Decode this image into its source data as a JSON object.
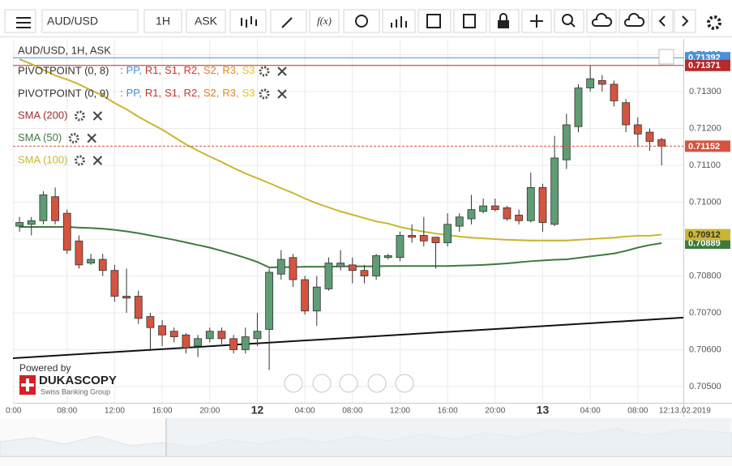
{
  "toolbar": {
    "symbol": "AUD/USD",
    "period": "1H",
    "side": "ASK",
    "function": "f(x)"
  },
  "chart_data": {
    "type": "candlestick",
    "title": "AUD/USD, 1H, ASK",
    "pivots": [
      {
        "name": "PIVOTPOINT (0, 8)",
        "parts": [
          {
            "text": ":",
            "color": "#666666"
          },
          {
            "text": "PP,",
            "color": "#3d8fe0"
          },
          {
            "text": "R1,",
            "color": "#c0392b"
          },
          {
            "text": "S1,",
            "color": "#c0392b"
          },
          {
            "text": "R2,",
            "color": "#d9352e"
          },
          {
            "text": "S2,",
            "color": "#e67e22"
          },
          {
            "text": "R3,",
            "color": "#e08b1a"
          },
          {
            "text": "S3",
            "color": "#e8c31a"
          }
        ]
      },
      {
        "name": "PIVOTPOINT (0, 9)",
        "parts": [
          {
            "text": ":",
            "color": "#666666"
          },
          {
            "text": "PP,",
            "color": "#3d8fe0"
          },
          {
            "text": "R1,",
            "color": "#c0392b"
          },
          {
            "text": "S1,",
            "color": "#c0392b"
          },
          {
            "text": "R2,",
            "color": "#d9352e"
          },
          {
            "text": "S2,",
            "color": "#e67e22"
          },
          {
            "text": "R3,",
            "color": "#e08b1a"
          },
          {
            "text": "S3",
            "color": "#e8c31a"
          }
        ]
      }
    ],
    "indicators": [
      {
        "name": "SMA (200)",
        "color": "#9b2d30"
      },
      {
        "name": "SMA (50)",
        "color": "#3e7a3e",
        "values": [
          0.70933,
          0.70933,
          0.70933,
          0.70933,
          0.70933,
          0.70931,
          0.7093,
          0.70928,
          0.70925,
          0.70921,
          0.70916,
          0.7091,
          0.70904,
          0.70898,
          0.70891,
          0.70884,
          0.70877,
          0.70868,
          0.70859,
          0.70849,
          0.70838,
          0.70823,
          0.70824,
          0.70824,
          0.70825,
          0.70825,
          0.70825,
          0.70826,
          0.70826,
          0.70826,
          0.70826,
          0.70827,
          0.70827,
          0.70827,
          0.70827,
          0.70827,
          0.70827,
          0.70828,
          0.70829,
          0.7083,
          0.70832,
          0.70834,
          0.70837,
          0.7084,
          0.70842,
          0.70844,
          0.70845,
          0.70849,
          0.70853,
          0.70857,
          0.70861,
          0.70868,
          0.70877,
          0.70884,
          0.70889
        ]
      },
      {
        "name": "SMA (100)",
        "color": "#c9b632",
        "values": [
          0.71388,
          0.71375,
          0.71359,
          0.71344,
          0.71333,
          0.7132,
          0.71304,
          0.71289,
          0.71269,
          0.71252,
          0.71232,
          0.71214,
          0.71197,
          0.71177,
          0.71157,
          0.7114,
          0.71124,
          0.71109,
          0.71093,
          0.71078,
          0.71065,
          0.71052,
          0.71038,
          0.71025,
          0.7101,
          0.70997,
          0.70986,
          0.70975,
          0.70966,
          0.70957,
          0.70948,
          0.70942,
          0.70933,
          0.70926,
          0.7092,
          0.70915,
          0.70911,
          0.70907,
          0.70904,
          0.70902,
          0.709,
          0.70898,
          0.70897,
          0.70896,
          0.70896,
          0.70896,
          0.70896,
          0.70898,
          0.709,
          0.70902,
          0.70904,
          0.70907,
          0.70909,
          0.70909,
          0.70912
        ]
      }
    ],
    "x": [
      0,
      1,
      2,
      3,
      4,
      5,
      6,
      7,
      8,
      9,
      10,
      11,
      12,
      13,
      14,
      15,
      16,
      17,
      18,
      19,
      20,
      21,
      22,
      23,
      24,
      25,
      26,
      27,
      28,
      29,
      30,
      31,
      32,
      33,
      34,
      35,
      36,
      37,
      38,
      39,
      40,
      41,
      42,
      43,
      44,
      45,
      46,
      47,
      48,
      49,
      50,
      51,
      52,
      53,
      54
    ],
    "open": [
      0.70935,
      0.7094,
      0.7095,
      0.71015,
      0.7097,
      0.70895,
      0.70835,
      0.70845,
      0.70815,
      0.70745,
      0.70745,
      0.7069,
      0.70665,
      0.7065,
      0.7064,
      0.7061,
      0.7063,
      0.7065,
      0.7063,
      0.706,
      0.7063,
      0.70655,
      0.70805,
      0.7085,
      0.7079,
      0.70705,
      0.70765,
      0.70825,
      0.7083,
      0.70815,
      0.708,
      0.7085,
      0.7085,
      0.7091,
      0.7091,
      0.70905,
      0.7089,
      0.70935,
      0.70955,
      0.70975,
      0.7099,
      0.70985,
      0.70965,
      0.7095,
      0.7104,
      0.7094,
      0.71115,
      0.71205,
      0.7131,
      0.7133,
      0.7132,
      0.7127,
      0.7121,
      0.7119,
      0.7117
    ],
    "high": [
      0.7096,
      0.7096,
      0.7103,
      0.7104,
      0.7098,
      0.7091,
      0.7086,
      0.7086,
      0.7083,
      0.7082,
      0.7076,
      0.707,
      0.7068,
      0.7066,
      0.70645,
      0.7064,
      0.7066,
      0.7066,
      0.7064,
      0.7066,
      0.707,
      0.7082,
      0.7087,
      0.7086,
      0.708,
      0.708,
      0.7085,
      0.7087,
      0.7085,
      0.7083,
      0.7086,
      0.7086,
      0.7092,
      0.7094,
      0.7096,
      0.709,
      0.7097,
      0.7097,
      0.7102,
      0.7101,
      0.7101,
      0.7099,
      0.7098,
      0.7108,
      0.7105,
      0.7118,
      0.7124,
      0.7132,
      0.7137,
      0.71345,
      0.7133,
      0.7128,
      0.7123,
      0.712,
      0.71175
    ],
    "low": [
      0.7092,
      0.7091,
      0.7094,
      0.7094,
      0.7086,
      0.7082,
      0.7083,
      0.708,
      0.7073,
      0.707,
      0.7067,
      0.706,
      0.7061,
      0.7062,
      0.7059,
      0.7058,
      0.7062,
      0.70615,
      0.7059,
      0.7059,
      0.7061,
      0.70545,
      0.7079,
      0.7077,
      0.70695,
      0.70665,
      0.7076,
      0.70815,
      0.7078,
      0.7078,
      0.7079,
      0.70845,
      0.7084,
      0.7089,
      0.7088,
      0.7082,
      0.7088,
      0.7092,
      0.7094,
      0.7097,
      0.70975,
      0.7095,
      0.7094,
      0.70945,
      0.7092,
      0.70935,
      0.7109,
      0.7119,
      0.713,
      0.713,
      0.7126,
      0.7119,
      0.7115,
      0.7114,
      0.711
    ],
    "close": [
      0.70945,
      0.7095,
      0.7102,
      0.7095,
      0.7087,
      0.7083,
      0.70845,
      0.70815,
      0.70745,
      0.7074,
      0.70685,
      0.7066,
      0.7064,
      0.70635,
      0.70605,
      0.7063,
      0.7065,
      0.7063,
      0.706,
      0.70635,
      0.7065,
      0.7081,
      0.70845,
      0.7079,
      0.70705,
      0.7077,
      0.70835,
      0.70835,
      0.70815,
      0.708,
      0.70855,
      0.70855,
      0.7091,
      0.70905,
      0.70895,
      0.7089,
      0.7094,
      0.7096,
      0.7098,
      0.7099,
      0.7098,
      0.70955,
      0.7095,
      0.7104,
      0.70945,
      0.7112,
      0.7121,
      0.7131,
      0.71335,
      0.7132,
      0.71275,
      0.7121,
      0.71185,
      0.71165,
      0.71152
    ],
    "up_color": "#5e9c74",
    "down_color": "#d5543f",
    "levels": [
      {
        "value": 0.71392,
        "color": "#4a8fd9"
      },
      {
        "value": 0.71371,
        "color": "#b52a2a"
      }
    ],
    "trendline": {
      "values": [
        0.70577,
        0.70687
      ],
      "color": "#111111"
    },
    "xlim": [
      -0.55,
      55.83
    ],
    "ylim": [
      0.70456,
      0.71443
    ],
    "xticks": [
      {
        "value": -0.5,
        "label": "0:00"
      },
      {
        "value": 4,
        "label": "08:00"
      },
      {
        "value": 8,
        "label": "12:00"
      },
      {
        "value": 12,
        "label": "16:00"
      },
      {
        "value": 16,
        "label": "20:00"
      },
      {
        "value": 20,
        "label": "12"
      },
      {
        "value": 24,
        "label": "04:00"
      },
      {
        "value": 28,
        "label": "08:00"
      },
      {
        "value": 32,
        "label": "12:00"
      },
      {
        "value": 36,
        "label": "16:00"
      },
      {
        "value": 40,
        "label": "20:00"
      },
      {
        "value": 44,
        "label": "13"
      },
      {
        "value": 48,
        "label": "04:00"
      },
      {
        "value": 52,
        "label": "08:00"
      },
      {
        "value": 58,
        "label": "12:13.02.2019"
      }
    ],
    "yticks": [
      {
        "value": 0.714,
        "label": "0.71400"
      },
      {
        "value": 0.713,
        "label": "0.71300"
      },
      {
        "value": 0.712,
        "label": "0.71200"
      },
      {
        "value": 0.711,
        "label": "0.71100"
      },
      {
        "value": 0.71,
        "label": "0.71000"
      },
      {
        "value": 0.709,
        "label": "0.70900"
      },
      {
        "value": 0.708,
        "label": "0.70800"
      },
      {
        "value": 0.707,
        "label": "0.70700"
      },
      {
        "value": 0.706,
        "label": "0.70600"
      },
      {
        "value": 0.705,
        "label": "0.70500"
      }
    ],
    "grid": true
  },
  "branding": {
    "powered": "Powered by",
    "name": "DUKASCOPY",
    "tagline": "Swiss Banking Group"
  }
}
